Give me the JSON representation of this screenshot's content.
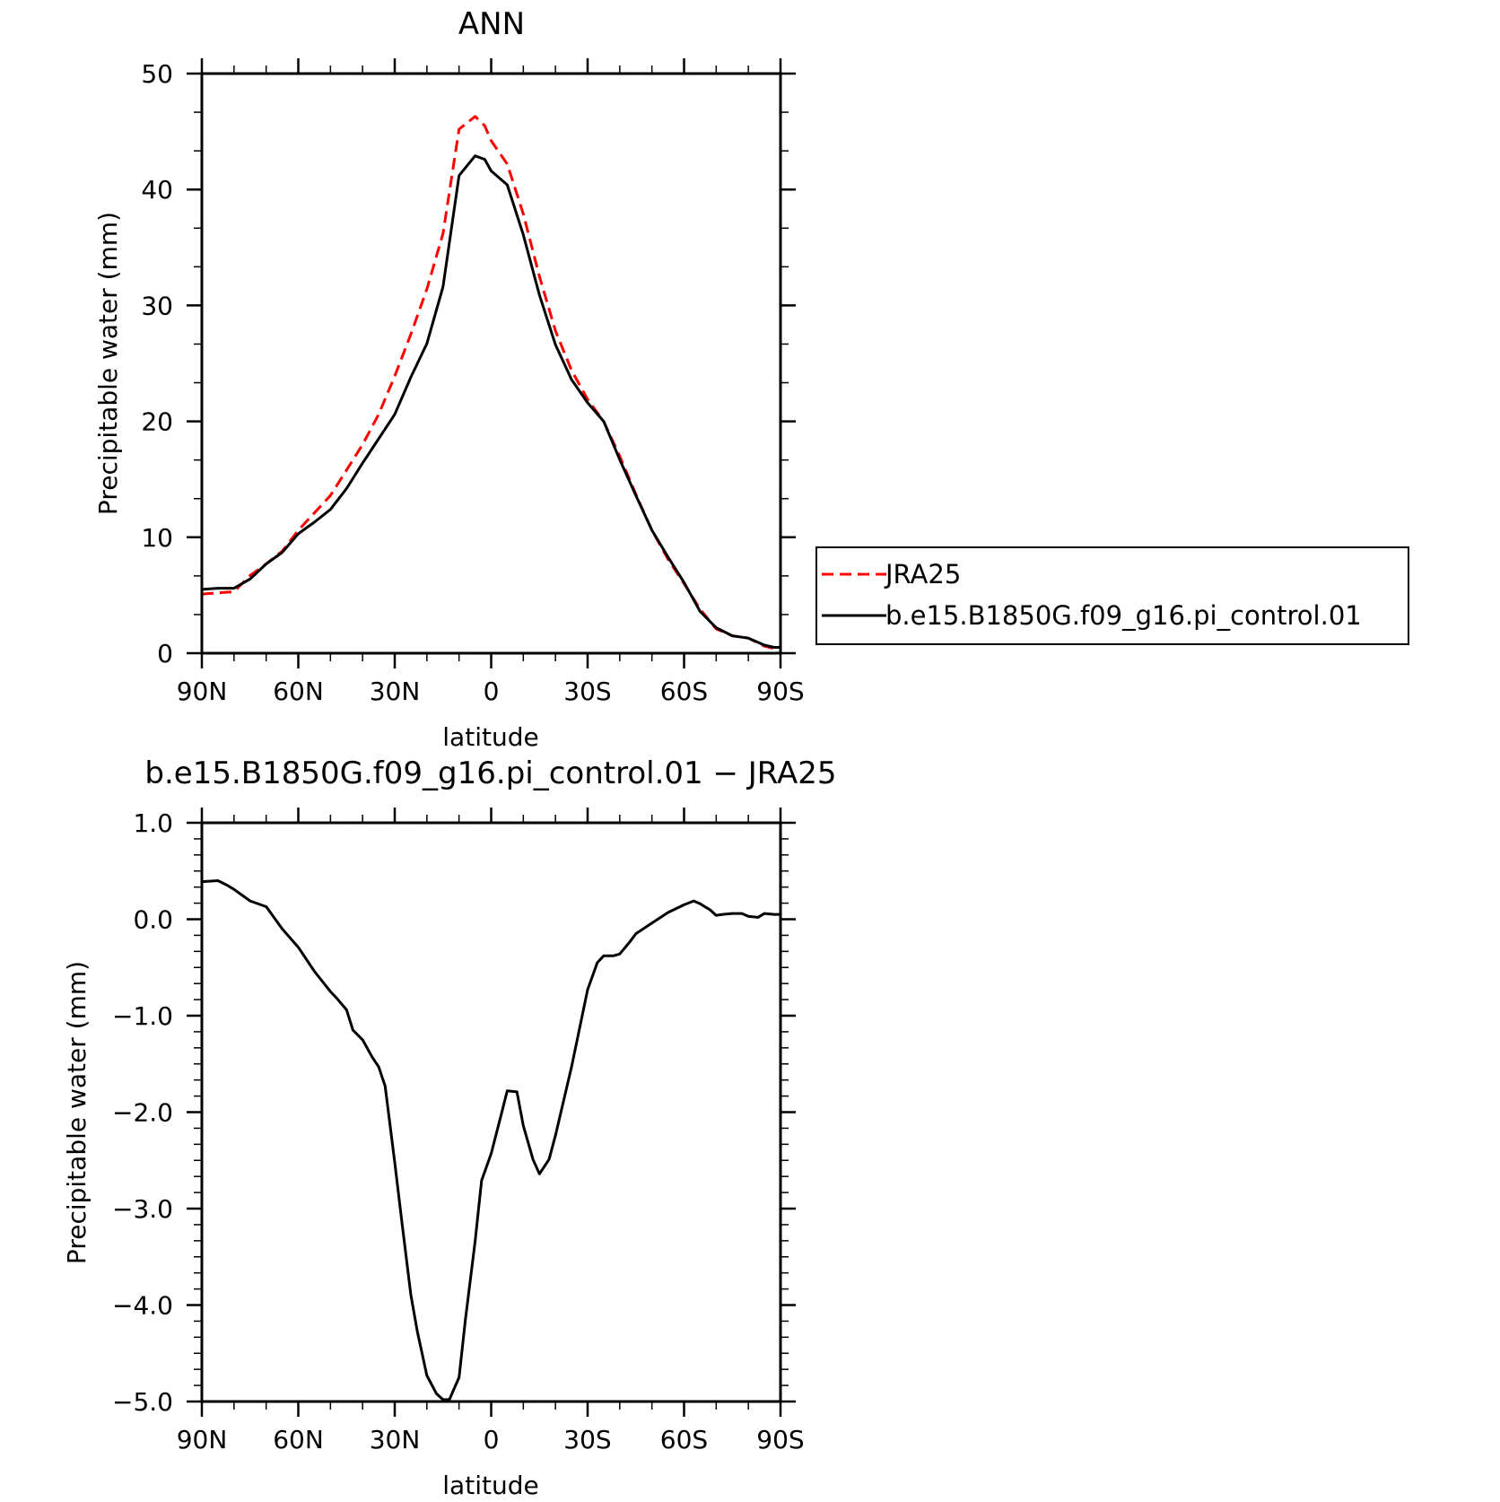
{
  "chart_data": [
    {
      "type": "line",
      "title": "ANN",
      "xlabel": "latitude",
      "ylabel": "Precipitable water (mm)",
      "xlim": [
        90,
        -90
      ],
      "ylim": [
        0,
        50
      ],
      "x_ticks": [
        90,
        60,
        30,
        0,
        -30,
        -60,
        -90
      ],
      "x_tick_labels": [
        "90N",
        "60N",
        "30N",
        "0",
        "30S",
        "60S",
        "90S"
      ],
      "y_ticks": [
        0,
        10,
        20,
        30,
        40,
        50
      ],
      "y_tick_labels": [
        "0",
        "10",
        "20",
        "30",
        "40",
        "50"
      ],
      "grid": false,
      "legend": {
        "placement": "right"
      },
      "series": [
        {
          "name": "JRA25",
          "color": "#ff0000",
          "dash": "dashed",
          "x": [
            90,
            85,
            80,
            75,
            70,
            65,
            60,
            55,
            50,
            45,
            40,
            35,
            30,
            25,
            20,
            15,
            10,
            5,
            2,
            0,
            -5,
            -10,
            -15,
            -20,
            -25,
            -30,
            -35,
            -40,
            -45,
            -50,
            -55,
            -60,
            -65,
            -70,
            -75,
            -80,
            -85,
            -88,
            -90
          ],
          "y": [
            5.1,
            5.2,
            5.3,
            6.7,
            7.7,
            8.8,
            10.6,
            12.1,
            13.6,
            15.8,
            18.0,
            20.6,
            23.9,
            27.5,
            31.4,
            36.2,
            45.2,
            46.3,
            45.5,
            44.2,
            42.2,
            37.9,
            32.5,
            27.8,
            24.4,
            21.9,
            20.0,
            17.0,
            13.7,
            10.6,
            8.1,
            6.0,
            3.8,
            2.1,
            1.5,
            1.3,
            0.6,
            0.4,
            0.5
          ]
        },
        {
          "name": "b.e15.B1850G.f09_g16.pi_control.01",
          "color": "#000000",
          "dash": "solid",
          "x": [
            90,
            85,
            80,
            75,
            70,
            65,
            60,
            55,
            50,
            45,
            40,
            35,
            30,
            25,
            20,
            15,
            10,
            5,
            2,
            0,
            -5,
            -10,
            -15,
            -20,
            -25,
            -30,
            -35,
            -40,
            -45,
            -50,
            -55,
            -60,
            -65,
            -70,
            -75,
            -80,
            -85,
            -88,
            -90
          ],
          "y": [
            5.5,
            5.6,
            5.6,
            6.4,
            7.7,
            8.7,
            10.3,
            11.3,
            12.4,
            14.2,
            16.4,
            18.5,
            20.6,
            23.8,
            26.7,
            31.6,
            41.2,
            42.9,
            42.6,
            41.6,
            40.4,
            36.1,
            30.9,
            26.6,
            23.6,
            21.6,
            20.0,
            16.7,
            13.6,
            10.6,
            8.3,
            6.1,
            3.6,
            2.2,
            1.5,
            1.3,
            0.7,
            0.5,
            0.5
          ]
        }
      ]
    },
    {
      "type": "line",
      "title": "b.e15.B1850G.f09_g16.pi_control.01 − JRA25",
      "xlabel": "latitude",
      "ylabel": "Precipitable water (mm)",
      "xlim": [
        90,
        -90
      ],
      "ylim": [
        -5.0,
        1.0
      ],
      "x_ticks": [
        90,
        60,
        30,
        0,
        -30,
        -60,
        -90
      ],
      "x_tick_labels": [
        "90N",
        "60N",
        "30N",
        "0",
        "30S",
        "60S",
        "90S"
      ],
      "y_ticks": [
        1.0,
        0.0,
        -1.0,
        -2.0,
        -3.0,
        -4.0,
        -5.0
      ],
      "y_tick_labels": [
        "1.0",
        "0.0",
        "−1.0",
        "−2.0",
        "−3.0",
        "−4.0",
        "−5.0"
      ],
      "grid": false,
      "series": [
        {
          "color": "#000000",
          "dash": "solid",
          "x": [
            90,
            85,
            82,
            80,
            75,
            70,
            68,
            65,
            60,
            55,
            50,
            48,
            45,
            43,
            40,
            37,
            35,
            33,
            30,
            28,
            25,
            23,
            20,
            17,
            15,
            13,
            10,
            8,
            5,
            3,
            0,
            -3,
            -5,
            -8,
            -10,
            -13,
            -15,
            -18,
            -20,
            -25,
            -30,
            -33,
            -35,
            -38,
            -40,
            -43,
            -45,
            -50,
            -55,
            -60,
            -63,
            -65,
            -68,
            -70,
            -72,
            -75,
            -78,
            -80,
            -83,
            -85,
            -88,
            -90
          ],
          "y": [
            0.39,
            0.4,
            0.35,
            0.31,
            0.19,
            0.13,
            0.04,
            -0.1,
            -0.29,
            -0.54,
            -0.75,
            -0.82,
            -0.94,
            -1.15,
            -1.25,
            -1.43,
            -1.53,
            -1.73,
            -2.52,
            -3.08,
            -3.89,
            -4.27,
            -4.73,
            -4.92,
            -4.98,
            -4.98,
            -4.75,
            -4.15,
            -3.34,
            -2.71,
            -2.43,
            -2.04,
            -1.78,
            -1.79,
            -2.14,
            -2.49,
            -2.64,
            -2.49,
            -2.24,
            -1.53,
            -0.73,
            -0.45,
            -0.38,
            -0.38,
            -0.36,
            -0.24,
            -0.15,
            -0.04,
            0.07,
            0.15,
            0.19,
            0.16,
            0.1,
            0.04,
            0.05,
            0.06,
            0.06,
            0.03,
            0.02,
            0.06,
            0.05,
            0.05
          ]
        }
      ]
    }
  ]
}
